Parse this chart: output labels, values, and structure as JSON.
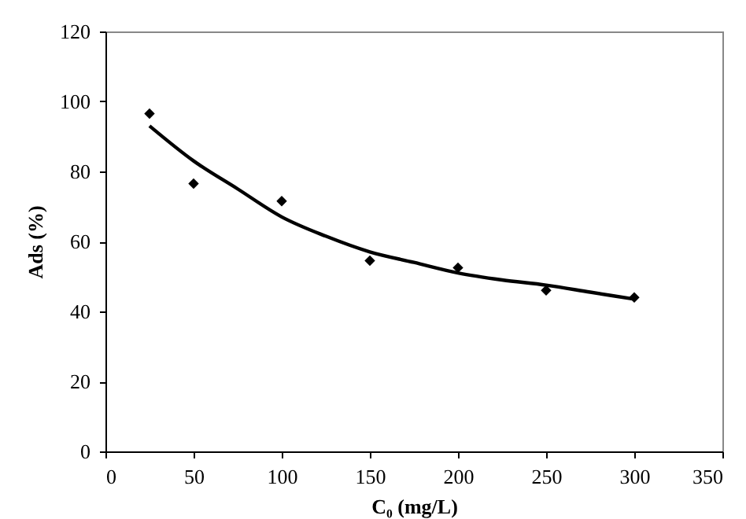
{
  "chart_data": {
    "type": "scatter",
    "xlabel": "C₀ (mg/L)",
    "ylabel": "Ads (%)",
    "xlim": [
      0,
      350
    ],
    "xticks": [
      0,
      50,
      100,
      150,
      200,
      250,
      300,
      350
    ],
    "ylim": [
      0,
      120
    ],
    "yticks": [
      0,
      20,
      40,
      60,
      80,
      100,
      120
    ],
    "grid": false,
    "series": [
      {
        "color": "#000000",
        "marker": "diamond",
        "x": [
          25,
          50,
          100,
          150,
          200,
          250,
          300
        ],
        "values": [
          96.5,
          76.5,
          71.5,
          54.5,
          52.5,
          46,
          44
        ]
      },
      {
        "type": "line",
        "marker": "none",
        "color": "#000000",
        "x": [
          25,
          50,
          75,
          100,
          125,
          150,
          175,
          200,
          225,
          250,
          275,
          300
        ],
        "values": [
          93,
          83,
          75,
          67,
          61.5,
          57,
          54,
          51,
          49,
          47.5,
          45.5,
          43.5
        ]
      }
    ]
  }
}
